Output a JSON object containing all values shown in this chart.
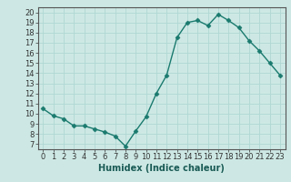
{
  "x": [
    0,
    1,
    2,
    3,
    4,
    5,
    6,
    7,
    8,
    9,
    10,
    11,
    12,
    13,
    14,
    15,
    16,
    17,
    18,
    19,
    20,
    21,
    22,
    23
  ],
  "y": [
    10.5,
    9.8,
    9.5,
    8.8,
    8.8,
    8.5,
    8.2,
    7.8,
    6.8,
    8.3,
    9.7,
    12.0,
    13.8,
    17.5,
    19.0,
    19.2,
    18.7,
    19.8,
    19.2,
    18.5,
    17.2,
    16.2,
    15.0,
    13.8
  ],
  "line_color": "#1a7a6e",
  "marker": "D",
  "markersize": 2.5,
  "linewidth": 1.0,
  "xlabel": "Humidex (Indice chaleur)",
  "xlim": [
    -0.5,
    23.5
  ],
  "ylim": [
    6.5,
    20.5
  ],
  "yticks": [
    7,
    8,
    9,
    10,
    11,
    12,
    13,
    14,
    15,
    16,
    17,
    18,
    19,
    20
  ],
  "xticks": [
    0,
    1,
    2,
    3,
    4,
    5,
    6,
    7,
    8,
    9,
    10,
    11,
    12,
    13,
    14,
    15,
    16,
    17,
    18,
    19,
    20,
    21,
    22,
    23
  ],
  "xtick_labels": [
    "0",
    "1",
    "2",
    "3",
    "4",
    "5",
    "6",
    "7",
    "8",
    "9",
    "10",
    "11",
    "12",
    "13",
    "14",
    "15",
    "16",
    "17",
    "18",
    "19",
    "20",
    "21",
    "22",
    "23"
  ],
  "bg_color": "#cde8e4",
  "grid_color": "#b0d8d4",
  "tick_fontsize": 6.0,
  "xlabel_fontsize": 7.0
}
